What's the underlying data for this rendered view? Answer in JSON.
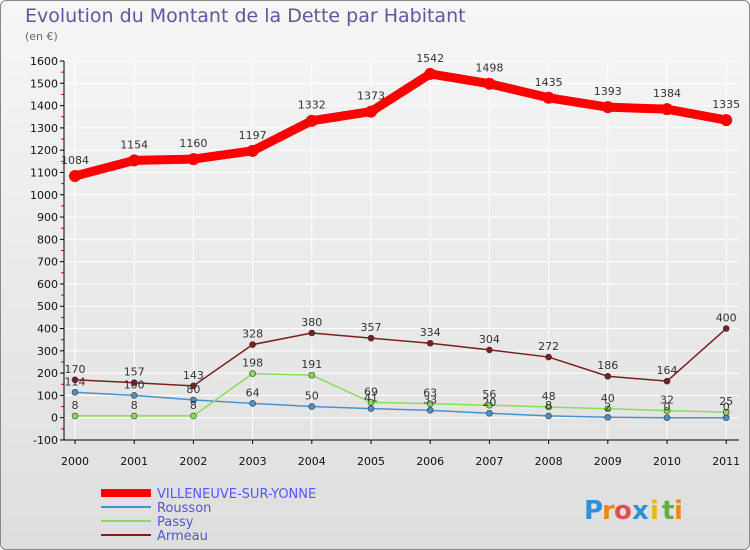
{
  "chart_data": {
    "type": "line",
    "title": "Evolution du Montant de la Dette par Habitant",
    "subtitle": "(en €)",
    "x": [
      "2000",
      "2001",
      "2002",
      "2003",
      "2004",
      "2005",
      "2006",
      "2007",
      "2008",
      "2009",
      "2010",
      "2011"
    ],
    "ylim": [
      -100,
      1600
    ],
    "yticks": [
      -100,
      0,
      100,
      200,
      300,
      400,
      500,
      600,
      700,
      800,
      900,
      1000,
      1100,
      1200,
      1300,
      1400,
      1500,
      1600
    ],
    "grid": true,
    "legend_position": "bottom-left",
    "series": [
      {
        "name": "VILLENEUVE-SUR-YONNE",
        "color": "#ff0000",
        "values": [
          1084,
          1154,
          1160,
          1197,
          1332,
          1373,
          1542,
          1498,
          1435,
          1393,
          1384,
          1335
        ],
        "labels": [
          "1084",
          "1154",
          "1160",
          "1197",
          "1332",
          "1373",
          "1542",
          "1498",
          "1435",
          "1393",
          "1384",
          "1335"
        ]
      },
      {
        "name": "Rousson",
        "color": "#4d90c8",
        "values": [
          114,
          100,
          80,
          64,
          50,
          41,
          33,
          20,
          8,
          2,
          0,
          0
        ],
        "labels": [
          "114",
          "100",
          "80",
          "64",
          "50",
          "41",
          "33",
          "20",
          "8",
          "2",
          "0",
          "0"
        ]
      },
      {
        "name": "Passy",
        "color": "#88dd55",
        "values": [
          8,
          8,
          8,
          198,
          191,
          69,
          63,
          56,
          48,
          40,
          32,
          25
        ],
        "labels": [
          "8",
          "8",
          "8",
          "198",
          "191",
          "69",
          "63",
          "56",
          "48",
          "40",
          "32",
          "25"
        ]
      },
      {
        "name": "Armeau",
        "color": "#7a2020",
        "values": [
          170,
          157,
          143,
          328,
          380,
          357,
          334,
          304,
          272,
          186,
          164,
          400
        ],
        "labels": [
          "170",
          "157",
          "143",
          "328",
          "380",
          "357",
          "334",
          "304",
          "272",
          "186",
          "164",
          "400"
        ]
      }
    ]
  },
  "brand": {
    "letters": [
      "P",
      "r",
      "o",
      "x",
      "i",
      "t",
      "i"
    ],
    "colors": [
      "#2f8fd8",
      "#e88a1a",
      "#e05050",
      "#2f8fd8",
      "#e8b81a",
      "#60b040",
      "#e88a1a"
    ]
  }
}
